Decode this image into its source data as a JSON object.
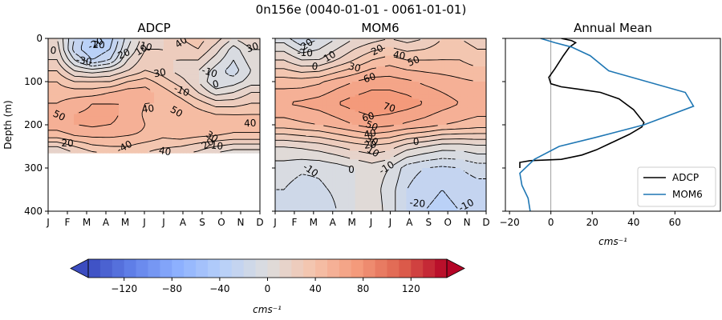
{
  "figure": {
    "suptitle": "0n156e (0040-01-01 - 0061-01-01)",
    "colorbar_label": "cms⁻¹"
  },
  "chart_data": [
    {
      "type": "heatmap",
      "title": "ADCP",
      "ylabel": "Depth (m)",
      "xlabel": "",
      "x_categories": [
        "J",
        "F",
        "M",
        "A",
        "M",
        "J",
        "J",
        "A",
        "S",
        "O",
        "N",
        "D"
      ],
      "ylim": [
        400,
        0
      ],
      "yticks": [
        0,
        100,
        200,
        300,
        400
      ],
      "valid_depth_max": 265,
      "contour_labels": [
        "40",
        "20",
        "10",
        "0",
        "-20",
        "-30",
        "20",
        "10",
        "30",
        "-10",
        "0",
        "-10",
        "30",
        "50",
        "40",
        "50",
        "40",
        "30",
        "20",
        "20",
        "-10",
        "-40",
        "40"
      ],
      "field": {
        "depths": [
          0,
          25,
          50,
          75,
          100,
          125,
          150,
          175,
          200,
          225,
          250,
          265
        ],
        "months": [
          "J",
          "F",
          "M",
          "A",
          "M",
          "J",
          "J",
          "A",
          "S",
          "O",
          "N",
          "D"
        ],
        "values": [
          [
            10,
            -20,
            -40,
            -35,
            -5,
            15,
            20,
            30,
            35,
            25,
            10,
            20
          ],
          [
            15,
            -25,
            -40,
            -30,
            0,
            20,
            20,
            25,
            30,
            15,
            -5,
            10
          ],
          [
            20,
            -10,
            -30,
            -20,
            10,
            25,
            20,
            20,
            20,
            5,
            -10,
            5
          ],
          [
            30,
            10,
            5,
            10,
            20,
            30,
            25,
            15,
            10,
            -5,
            -15,
            0
          ],
          [
            40,
            30,
            30,
            30,
            40,
            45,
            35,
            25,
            10,
            -10,
            -5,
            5
          ],
          [
            45,
            45,
            45,
            50,
            55,
            55,
            45,
            35,
            20,
            5,
            10,
            20
          ],
          [
            50,
            55,
            60,
            60,
            60,
            50,
            50,
            45,
            35,
            25,
            25,
            30
          ],
          [
            55,
            60,
            62,
            62,
            58,
            48,
            45,
            48,
            45,
            40,
            40,
            40
          ],
          [
            55,
            60,
            62,
            60,
            58,
            50,
            45,
            50,
            50,
            48,
            45,
            45
          ],
          [
            45,
            50,
            52,
            52,
            50,
            48,
            42,
            45,
            42,
            40,
            38,
            38
          ],
          [
            20,
            30,
            38,
            40,
            40,
            35,
            32,
            30,
            25,
            20,
            15,
            15
          ],
          [
            10,
            20,
            28,
            32,
            35,
            30,
            25,
            22,
            18,
            10,
            5,
            5
          ]
        ]
      }
    },
    {
      "type": "heatmap",
      "title": "MOM6",
      "xlabel": "",
      "x_categories": [
        "J",
        "F",
        "M",
        "A",
        "M",
        "J",
        "J",
        "A",
        "S",
        "O",
        "N",
        "D"
      ],
      "ylim": [
        400,
        0
      ],
      "contour_labels": [
        "-20",
        "-10",
        "10",
        "0",
        "20",
        "40",
        "50",
        "30",
        "60",
        "70",
        "60",
        "50",
        "40",
        "30",
        "20",
        "10",
        "0",
        "-10",
        "0",
        "-10",
        "-20",
        "-10"
      ],
      "field": {
        "depths": [
          0,
          50,
          100,
          150,
          200,
          250,
          300,
          350,
          400
        ],
        "months": [
          "J",
          "F",
          "M",
          "A",
          "M",
          "J",
          "J",
          "A",
          "S",
          "O",
          "N",
          "D"
        ],
        "values": [
          [
            -5,
            -20,
            -10,
            0,
            10,
            15,
            20,
            15,
            20,
            30,
            30,
            25
          ],
          [
            20,
            10,
            10,
            20,
            30,
            40,
            45,
            40,
            40,
            40,
            40,
            35
          ],
          [
            45,
            45,
            48,
            55,
            60,
            65,
            65,
            62,
            58,
            55,
            52,
            50
          ],
          [
            60,
            62,
            65,
            70,
            75,
            78,
            78,
            75,
            70,
            65,
            60,
            58
          ],
          [
            45,
            48,
            50,
            55,
            60,
            65,
            62,
            58,
            55,
            50,
            48,
            45
          ],
          [
            10,
            12,
            15,
            20,
            25,
            28,
            25,
            15,
            10,
            5,
            5,
            8
          ],
          [
            -5,
            -8,
            -8,
            -5,
            0,
            5,
            0,
            -15,
            -20,
            -22,
            -20,
            -15
          ],
          [
            -10,
            -15,
            -12,
            -8,
            0,
            5,
            -5,
            -20,
            -28,
            -30,
            -28,
            -25
          ],
          [
            -15,
            -20,
            -18,
            -10,
            0,
            8,
            -5,
            -20,
            -30,
            -32,
            -30,
            -28
          ]
        ]
      }
    },
    {
      "type": "line",
      "title": "Annual Mean",
      "xlabel": "cms⁻¹",
      "xlim": [
        -22,
        82
      ],
      "ylim": [
        400,
        0
      ],
      "xticks": [
        -20,
        0,
        20,
        40,
        60
      ],
      "vline_at": 0,
      "legend_position": "lower-right",
      "series": [
        {
          "name": "ADCP",
          "color": "#000000",
          "points": [
            [
              5,
              0
            ],
            [
              10,
              5
            ],
            [
              12,
              10
            ],
            [
              9,
              20
            ],
            [
              6,
              40
            ],
            [
              2,
              70
            ],
            [
              -1,
              90
            ],
            [
              0,
              105
            ],
            [
              5,
              112
            ],
            [
              14,
              118
            ],
            [
              24,
              125
            ],
            [
              33,
              140
            ],
            [
              40,
              165
            ],
            [
              45,
              195
            ],
            [
              44,
              205
            ],
            [
              38,
              222
            ],
            [
              30,
              240
            ],
            [
              22,
              258
            ],
            [
              15,
              270
            ],
            [
              5,
              280
            ],
            [
              -10,
              283
            ],
            [
              -15,
              287
            ],
            [
              -15,
              300
            ]
          ]
        },
        {
          "name": "MOM6",
          "color": "#1f77b4",
          "points": [
            [
              -5,
              0
            ],
            [
              2,
              10
            ],
            [
              10,
              20
            ],
            [
              19,
              40
            ],
            [
              28,
              75
            ],
            [
              65,
              125
            ],
            [
              69,
              157
            ],
            [
              45,
              200
            ],
            [
              21,
              230
            ],
            [
              4,
              250
            ],
            [
              -8,
              280
            ],
            [
              -15,
              312
            ],
            [
              -14,
              340
            ],
            [
              -11,
              370
            ],
            [
              -10,
              400
            ]
          ]
        }
      ]
    },
    {
      "type": "colorbar",
      "vmin": -150,
      "vmax": 150,
      "step": 10,
      "ticks": [
        -120,
        -80,
        -40,
        0,
        40,
        80,
        120
      ],
      "extend": "both",
      "cmap": "coolwarm"
    }
  ]
}
